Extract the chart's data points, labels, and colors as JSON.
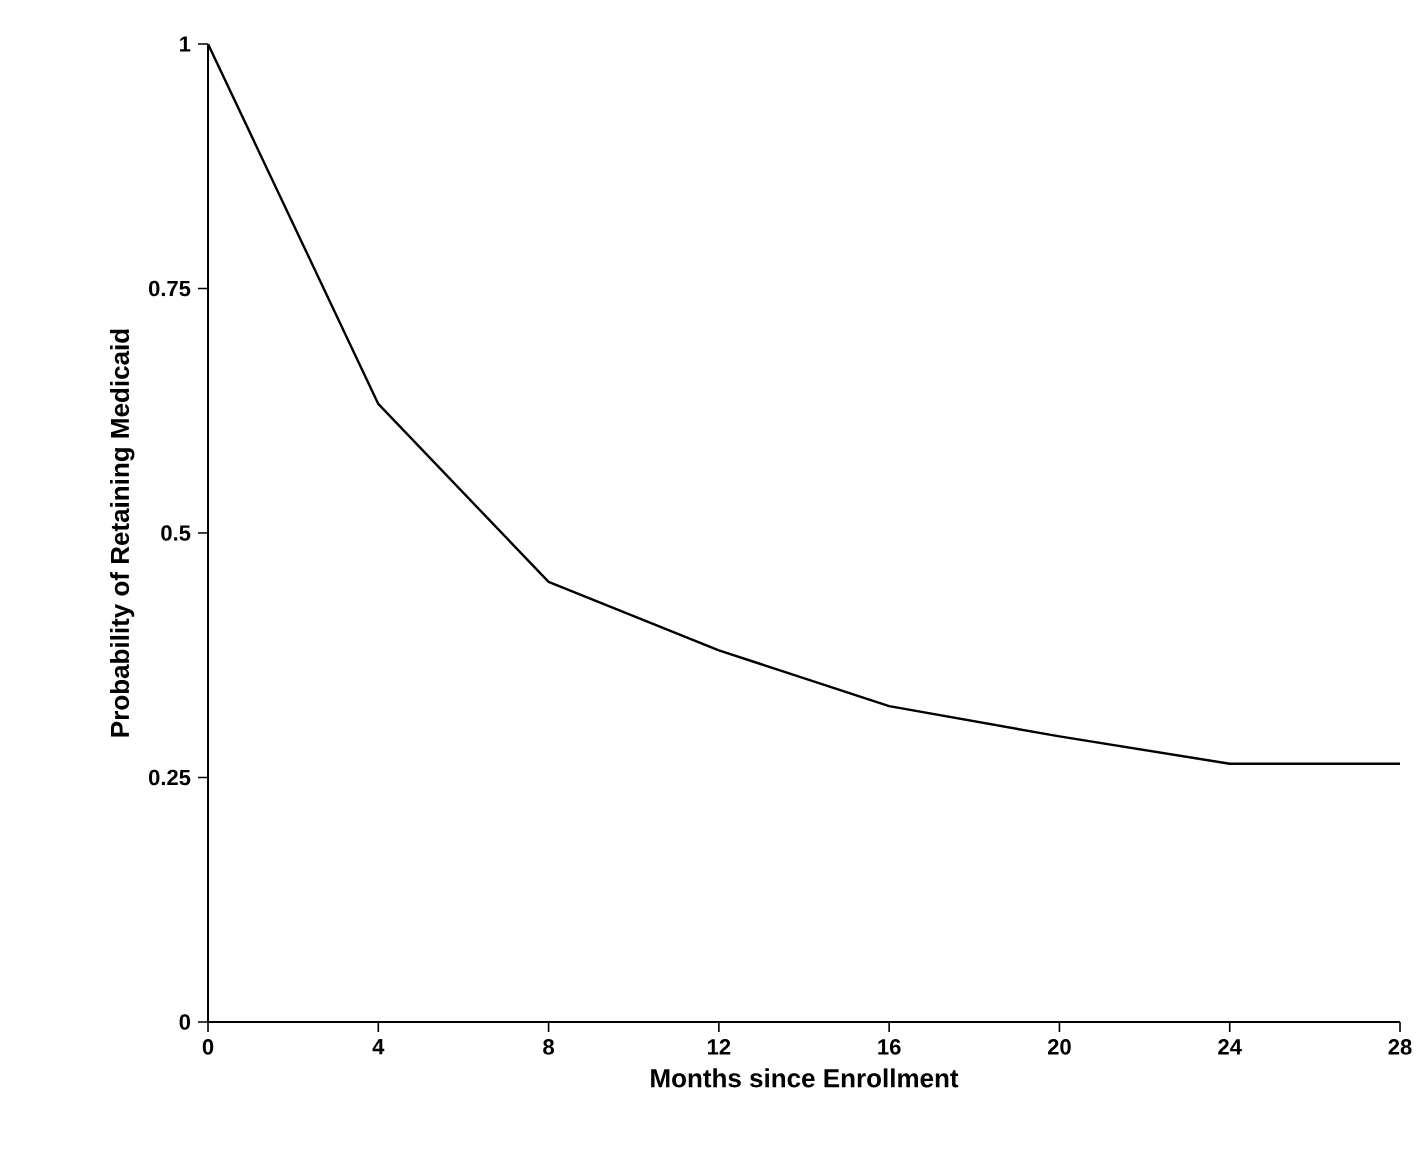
{
  "chart_data": {
    "type": "line",
    "xlabel": "Months since Enrollment",
    "ylabel": "Probability of Retaining Medicaid",
    "x": [
      0,
      4,
      8,
      12,
      16,
      20,
      24,
      28
    ],
    "series": [
      {
        "color": "#000000",
        "values": [
          1,
          0.632,
          0.45,
          0.38,
          0.323,
          0.292,
          0.264,
          0.264
        ]
      }
    ],
    "xlim": [
      0,
      28
    ],
    "ylim": [
      0,
      1
    ],
    "xticks": [
      0,
      4,
      8,
      12,
      16,
      20,
      24,
      28
    ],
    "yticks": [
      0,
      0.25,
      0.5,
      0.75,
      1
    ],
    "grid": false,
    "marker": "none",
    "line_style": "solid"
  }
}
